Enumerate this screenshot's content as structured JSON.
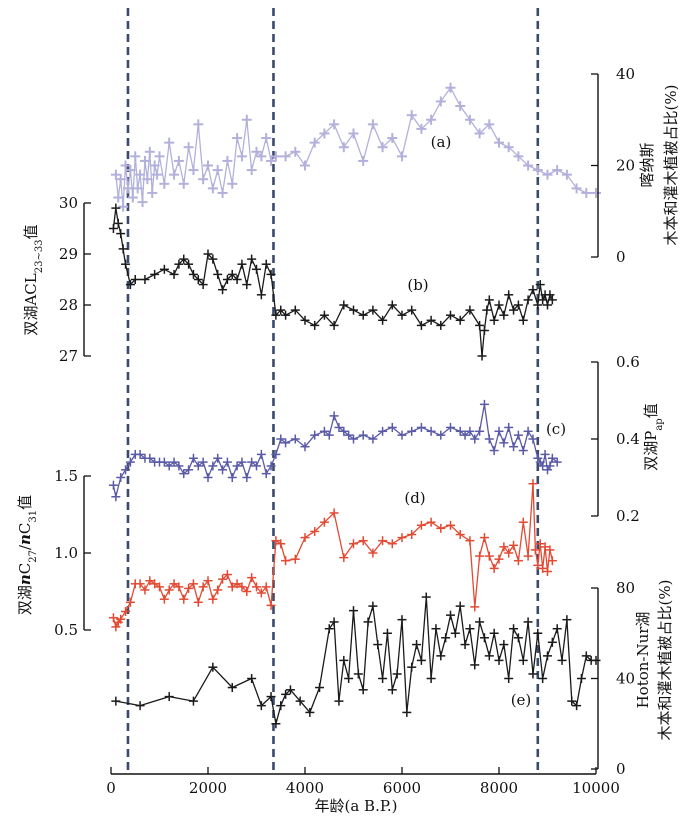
{
  "chart_data": {
    "type": "line",
    "x_axis": {
      "label": "年龄(a B.P.)",
      "range": [
        0,
        10000
      ],
      "ticks": [
        "0",
        "2000",
        "4000",
        "6000",
        "8000",
        "10000"
      ]
    },
    "vlines": [
      350,
      3350,
      8800
    ],
    "panels": [
      {
        "id": "a",
        "label": "(a)",
        "color": "#b3b1db",
        "marker": "+",
        "axis_side": "right",
        "ylabel_lines": [
          "喀纳斯",
          "木本和灌木植被占比(%)"
        ],
        "ylim": [
          0,
          40
        ],
        "ticks": [
          "0",
          "20",
          "40"
        ],
        "x": [
          100,
          150,
          200,
          250,
          300,
          350,
          400,
          450,
          500,
          550,
          600,
          650,
          700,
          750,
          800,
          850,
          900,
          950,
          1000,
          1100,
          1200,
          1300,
          1400,
          1500,
          1600,
          1700,
          1800,
          1900,
          2000,
          2100,
          2200,
          2300,
          2400,
          2500,
          2600,
          2700,
          2800,
          2900,
          3000,
          3100,
          3200,
          3300,
          3400,
          3600,
          3800,
          4000,
          4200,
          4400,
          4600,
          4800,
          5000,
          5200,
          5400,
          5600,
          5800,
          6000,
          6200,
          6400,
          6600,
          6800,
          7000,
          7200,
          7400,
          7600,
          7800,
          8000,
          8200,
          8400,
          8600,
          8800,
          9000,
          9200,
          9400,
          9600,
          9800,
          10000
        ],
        "y": [
          18,
          13,
          17,
          11,
          20,
          15,
          19,
          13,
          22,
          15,
          18,
          12,
          21,
          17,
          23,
          14,
          20,
          18,
          22,
          16,
          25,
          18,
          21,
          16,
          24,
          19,
          29,
          17,
          20,
          15,
          19,
          14,
          21,
          16,
          26,
          22,
          30,
          19,
          23,
          22,
          26,
          21,
          22,
          22,
          23,
          20,
          25,
          27,
          29,
          24,
          27,
          21,
          29,
          24,
          26,
          22,
          31,
          28,
          30,
          34,
          37,
          33,
          30,
          27,
          29,
          25,
          24,
          22,
          20,
          19,
          18,
          19,
          18,
          15,
          14,
          14
        ]
      },
      {
        "id": "b",
        "label": "(b)",
        "color": "#1a1a1a",
        "marker": "+",
        "axis_side": "left",
        "ylabel_text": "双湖ACL",
        "ylabel_sub": "23~33",
        "ylabel_tail": "值",
        "ylim": [
          27,
          30
        ],
        "ticks": [
          "27",
          "28",
          "29",
          "30"
        ],
        "x": [
          50,
          100,
          150,
          200,
          250,
          300,
          400,
          500,
          700,
          900,
          1100,
          1300,
          1400,
          1500,
          1600,
          1700,
          1800,
          1900,
          2000,
          2100,
          2200,
          2300,
          2400,
          2500,
          2600,
          2700,
          2800,
          2900,
          3000,
          3100,
          3200,
          3300,
          3400,
          3500,
          3600,
          3800,
          4000,
          4200,
          4400,
          4600,
          4800,
          5000,
          5200,
          5400,
          5600,
          5800,
          6000,
          6200,
          6400,
          6600,
          6800,
          7000,
          7200,
          7400,
          7600,
          7650,
          7700,
          7750,
          7800,
          7900,
          8000,
          8100,
          8200,
          8300,
          8400,
          8500,
          8600,
          8700,
          8800,
          8850,
          8900,
          8950,
          9000,
          9050,
          9100
        ],
        "y": [
          29.5,
          29.9,
          29.6,
          29.4,
          29.1,
          28.8,
          28.4,
          28.5,
          28.5,
          28.6,
          28.7,
          28.6,
          28.8,
          28.9,
          28.8,
          28.6,
          28.5,
          28.4,
          29.0,
          28.9,
          28.6,
          28.3,
          28.5,
          28.6,
          28.5,
          28.8,
          28.4,
          28.9,
          28.7,
          28.2,
          28.8,
          28.6,
          27.8,
          27.9,
          27.8,
          27.9,
          27.7,
          27.6,
          27.8,
          27.6,
          28.0,
          27.9,
          27.8,
          27.9,
          27.7,
          28.0,
          27.8,
          27.9,
          27.6,
          27.7,
          27.6,
          27.8,
          27.7,
          27.9,
          27.6,
          27.0,
          27.5,
          27.9,
          28.1,
          27.7,
          28.0,
          27.8,
          28.2,
          27.9,
          28.0,
          27.7,
          28.1,
          28.3,
          28.0,
          28.4,
          28.1,
          28.2,
          28.0,
          28.2,
          28.1
        ]
      },
      {
        "id": "c",
        "label": "(c)",
        "color": "#5a5aa6",
        "marker": "+",
        "axis_side": "right",
        "ylabel_text": "双湖P",
        "ylabel_sub": "ap",
        "ylabel_tail": "值",
        "ylim": [
          0.2,
          0.6
        ],
        "ticks": [
          "0.2",
          "0.4",
          "0.6"
        ],
        "x": [
          50,
          100,
          200,
          300,
          400,
          500,
          600,
          700,
          800,
          900,
          1000,
          1100,
          1200,
          1300,
          1400,
          1500,
          1600,
          1700,
          1800,
          1900,
          2000,
          2100,
          2200,
          2300,
          2400,
          2500,
          2600,
          2700,
          2800,
          2900,
          3000,
          3100,
          3200,
          3300,
          3400,
          3500,
          3600,
          3800,
          4000,
          4200,
          4400,
          4500,
          4600,
          4700,
          4800,
          4900,
          5000,
          5200,
          5400,
          5600,
          5800,
          6000,
          6200,
          6400,
          6600,
          6800,
          7000,
          7200,
          7300,
          7400,
          7500,
          7600,
          7700,
          7800,
          7900,
          8000,
          8100,
          8200,
          8300,
          8400,
          8500,
          8600,
          8700,
          8800,
          8850,
          8900,
          8950,
          9000,
          9050,
          9100,
          9200
        ],
        "y": [
          0.28,
          0.25,
          0.3,
          0.32,
          0.34,
          0.36,
          0.36,
          0.35,
          0.35,
          0.34,
          0.34,
          0.34,
          0.33,
          0.34,
          0.33,
          0.31,
          0.32,
          0.35,
          0.33,
          0.34,
          0.3,
          0.33,
          0.35,
          0.32,
          0.34,
          0.3,
          0.33,
          0.34,
          0.3,
          0.34,
          0.33,
          0.36,
          0.31,
          0.33,
          0.36,
          0.4,
          0.39,
          0.4,
          0.38,
          0.41,
          0.42,
          0.41,
          0.46,
          0.43,
          0.42,
          0.41,
          0.4,
          0.41,
          0.4,
          0.42,
          0.43,
          0.41,
          0.42,
          0.43,
          0.42,
          0.41,
          0.43,
          0.42,
          0.41,
          0.42,
          0.4,
          0.42,
          0.49,
          0.4,
          0.37,
          0.42,
          0.39,
          0.43,
          0.38,
          0.41,
          0.37,
          0.42,
          0.4,
          0.35,
          0.34,
          0.33,
          0.36,
          0.32,
          0.33,
          0.35,
          0.34
        ]
      },
      {
        "id": "d",
        "label": "(d)",
        "color": "#e24a33",
        "marker": "+",
        "axis_side": "left",
        "ylabel_parts": [
          "双湖",
          "n",
          "C",
          "27",
          "/",
          "n",
          "C",
          "31",
          "值"
        ],
        "ylim": [
          0.5,
          1.5
        ],
        "ticks": [
          "0.5",
          "1.0",
          "1.5"
        ],
        "x": [
          50,
          100,
          150,
          200,
          300,
          400,
          500,
          600,
          700,
          800,
          900,
          1000,
          1100,
          1200,
          1300,
          1400,
          1500,
          1600,
          1700,
          1800,
          1900,
          2000,
          2100,
          2200,
          2300,
          2400,
          2500,
          2600,
          2700,
          2800,
          2900,
          3000,
          3100,
          3200,
          3300,
          3400,
          3500,
          3600,
          3800,
          4000,
          4200,
          4400,
          4600,
          4800,
          5000,
          5200,
          5400,
          5600,
          5800,
          6000,
          6200,
          6400,
          6600,
          6800,
          7000,
          7200,
          7400,
          7500,
          7600,
          7700,
          7800,
          7900,
          8000,
          8100,
          8200,
          8300,
          8400,
          8500,
          8600,
          8700,
          8750,
          8800,
          8850,
          8900,
          8950,
          9000,
          9050,
          9100
        ],
        "y": [
          0.58,
          0.52,
          0.55,
          0.57,
          0.62,
          0.68,
          0.8,
          0.8,
          0.76,
          0.82,
          0.8,
          0.78,
          0.7,
          0.76,
          0.8,
          0.78,
          0.7,
          0.77,
          0.8,
          0.68,
          0.78,
          0.82,
          0.7,
          0.76,
          0.83,
          0.86,
          0.78,
          0.8,
          0.78,
          0.75,
          0.84,
          0.78,
          0.74,
          0.78,
          0.66,
          1.08,
          1.06,
          0.95,
          0.96,
          1.1,
          1.14,
          1.2,
          1.26,
          0.97,
          1.06,
          1.08,
          1.0,
          1.08,
          1.06,
          1.1,
          1.12,
          1.18,
          1.2,
          1.16,
          1.18,
          1.12,
          1.08,
          0.65,
          0.98,
          1.1,
          0.98,
          0.9,
          0.96,
          1.04,
          1.0,
          1.05,
          0.95,
          1.2,
          0.98,
          1.45,
          1.02,
          0.92,
          1.06,
          0.9,
          1.04,
          0.88,
          1.02,
          0.95
        ]
      },
      {
        "id": "e",
        "label": "(e)",
        "color": "#1a1a1a",
        "marker": "+",
        "axis_side": "right",
        "ylabel_lines": [
          "Hoton-Nur湖",
          "木本和灌木植被占比(%)"
        ],
        "ylim": [
          0,
          80
        ],
        "ticks": [
          "0",
          "40",
          "80"
        ],
        "x": [
          100,
          600,
          1200,
          1700,
          2100,
          2500,
          2900,
          3100,
          3300,
          3400,
          3500,
          3600,
          3700,
          3900,
          4100,
          4300,
          4500,
          4600,
          4700,
          4800,
          4900,
          5000,
          5100,
          5200,
          5300,
          5400,
          5500,
          5600,
          5700,
          5800,
          5900,
          6000,
          6100,
          6200,
          6300,
          6400,
          6500,
          6600,
          6700,
          6800,
          6900,
          7000,
          7100,
          7200,
          7300,
          7400,
          7500,
          7600,
          7700,
          7800,
          7900,
          8000,
          8100,
          8200,
          8300,
          8400,
          8500,
          8600,
          8700,
          8800,
          8900,
          9000,
          9100,
          9200,
          9300,
          9400,
          9500,
          9600,
          9700,
          9800,
          9900,
          10000
        ],
        "y": [
          30,
          28,
          32,
          30,
          45,
          36,
          40,
          28,
          32,
          20,
          28,
          33,
          35,
          30,
          25,
          36,
          62,
          65,
          30,
          48,
          40,
          70,
          42,
          35,
          65,
          72,
          55,
          40,
          60,
          35,
          42,
          66,
          25,
          45,
          55,
          48,
          76,
          40,
          62,
          50,
          58,
          68,
          60,
          72,
          55,
          62,
          46,
          65,
          58,
          50,
          60,
          48,
          55,
          40,
          62,
          58,
          48,
          65,
          42,
          60,
          40,
          50,
          56,
          62,
          48,
          66,
          30,
          28,
          40,
          50,
          48,
          48
        ]
      }
    ]
  }
}
